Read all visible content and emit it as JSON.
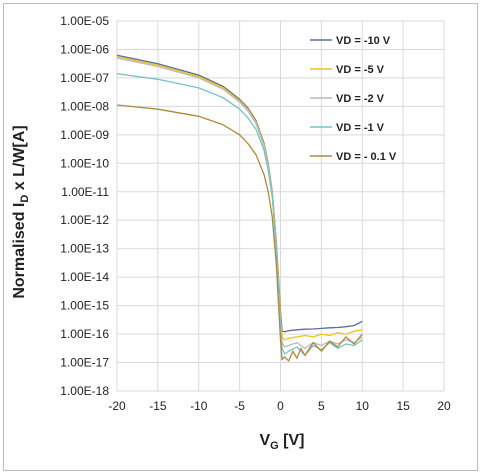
{
  "chart_data": {
    "type": "line",
    "xlabel_main": "V",
    "xlabel_sub": "G",
    "xlabel_rest": " [V]",
    "ylabel_main": "Normalised I",
    "ylabel_sub": "D",
    "ylabel_rest": " x L/W[A]",
    "xlim": [
      -20,
      20
    ],
    "ylim_exp": [
      -18,
      -5
    ],
    "x_ticks": [
      -20,
      -15,
      -10,
      -5,
      0,
      5,
      10,
      15,
      20
    ],
    "x_tick_labels": [
      "-20",
      "-15",
      "-10",
      "-5",
      "0",
      "5",
      "10",
      "15",
      "20"
    ],
    "y_ticks_exp": [
      -5,
      -6,
      -7,
      -8,
      -9,
      -10,
      -11,
      -12,
      -13,
      -14,
      -15,
      -16,
      -17,
      -18
    ],
    "y_tick_labels": [
      "1.00E-05",
      "1.00E-06",
      "1.00E-07",
      "1.00E-08",
      "1.00E-09",
      "1.00E-10",
      "1.00E-11",
      "1.00E-12",
      "1.00E-13",
      "1.00E-14",
      "1.00E-15",
      "1.00E-16",
      "1.00E-17",
      "1.00E-18"
    ],
    "grid": true,
    "log_y": true,
    "legend_position": "top-right",
    "series": [
      {
        "name": "VD = -10 V",
        "color": "#5b6b9c",
        "x": [
          -20,
          -15,
          -10,
          -7,
          -5,
          -4,
          -3,
          -2,
          -1.5,
          -1,
          -0.5,
          0,
          0.2,
          0.5,
          1,
          2,
          3,
          4,
          5,
          6,
          7,
          8,
          9,
          10
        ],
        "log10_y": [
          -6.2,
          -6.5,
          -6.9,
          -7.3,
          -7.75,
          -8.05,
          -8.5,
          -9.3,
          -10.0,
          -11.0,
          -12.8,
          -15.2,
          -15.9,
          -15.92,
          -15.88,
          -15.85,
          -15.83,
          -15.82,
          -15.8,
          -15.78,
          -15.77,
          -15.74,
          -15.7,
          -15.55
        ]
      },
      {
        "name": "VD = -5 V",
        "color": "#f0c419",
        "x": [
          -20,
          -15,
          -10,
          -7,
          -5,
          -4,
          -3,
          -2,
          -1.5,
          -1,
          -0.5,
          0,
          0.2,
          0.5,
          1,
          2,
          3,
          4,
          5,
          6,
          7,
          8,
          9,
          10
        ],
        "log10_y": [
          -6.25,
          -6.55,
          -6.95,
          -7.35,
          -7.8,
          -8.1,
          -8.55,
          -9.35,
          -10.05,
          -11.05,
          -12.9,
          -15.4,
          -16.1,
          -16.2,
          -16.15,
          -16.1,
          -16.05,
          -16.1,
          -16.0,
          -16.05,
          -15.95,
          -16.0,
          -15.9,
          -15.85
        ]
      },
      {
        "name": "VD = -2 V",
        "color": "#b9b9b9",
        "x": [
          -20,
          -15,
          -10,
          -7,
          -5,
          -4,
          -3,
          -2,
          -1.5,
          -1,
          -0.5,
          0,
          0.2,
          0.5,
          1,
          2,
          3,
          4,
          5,
          6,
          7,
          8,
          9,
          10
        ],
        "log10_y": [
          -6.3,
          -6.6,
          -7.0,
          -7.4,
          -7.85,
          -8.15,
          -8.6,
          -9.4,
          -10.1,
          -11.1,
          -13.0,
          -15.6,
          -16.3,
          -16.45,
          -16.4,
          -16.3,
          -16.5,
          -16.3,
          -16.4,
          -16.25,
          -16.35,
          -16.2,
          -16.3,
          -16.1
        ]
      },
      {
        "name": "VD = -1 V",
        "color": "#76c2c8",
        "x": [
          -20,
          -15,
          -10,
          -7,
          -5,
          -4,
          -3,
          -2,
          -1.5,
          -1,
          -0.5,
          0,
          0.2,
          0.5,
          1,
          2,
          3,
          4,
          5,
          6,
          7,
          8,
          9,
          10
        ],
        "log10_y": [
          -6.85,
          -7.05,
          -7.35,
          -7.7,
          -8.1,
          -8.4,
          -8.8,
          -9.55,
          -10.25,
          -11.2,
          -13.1,
          -15.7,
          -16.5,
          -16.7,
          -16.6,
          -16.45,
          -16.75,
          -16.4,
          -16.55,
          -16.3,
          -16.5,
          -16.35,
          -16.4,
          -16.2
        ]
      },
      {
        "name": "VD = - 0.1 V",
        "color": "#b08a3c",
        "x": [
          -20,
          -15,
          -10,
          -7,
          -5,
          -4,
          -3,
          -2,
          -1.5,
          -1,
          -0.5,
          0,
          0.2,
          0.5,
          1,
          1.5,
          2,
          2.5,
          3,
          4,
          5,
          6,
          7,
          8,
          9,
          10
        ],
        "log10_y": [
          -7.95,
          -8.1,
          -8.35,
          -8.65,
          -9.0,
          -9.3,
          -9.7,
          -10.4,
          -11.0,
          -11.9,
          -13.6,
          -16.2,
          -16.9,
          -16.8,
          -16.95,
          -16.6,
          -16.85,
          -16.5,
          -16.75,
          -16.3,
          -16.6,
          -16.25,
          -16.45,
          -16.1,
          -16.35,
          -16.0
        ]
      }
    ]
  }
}
